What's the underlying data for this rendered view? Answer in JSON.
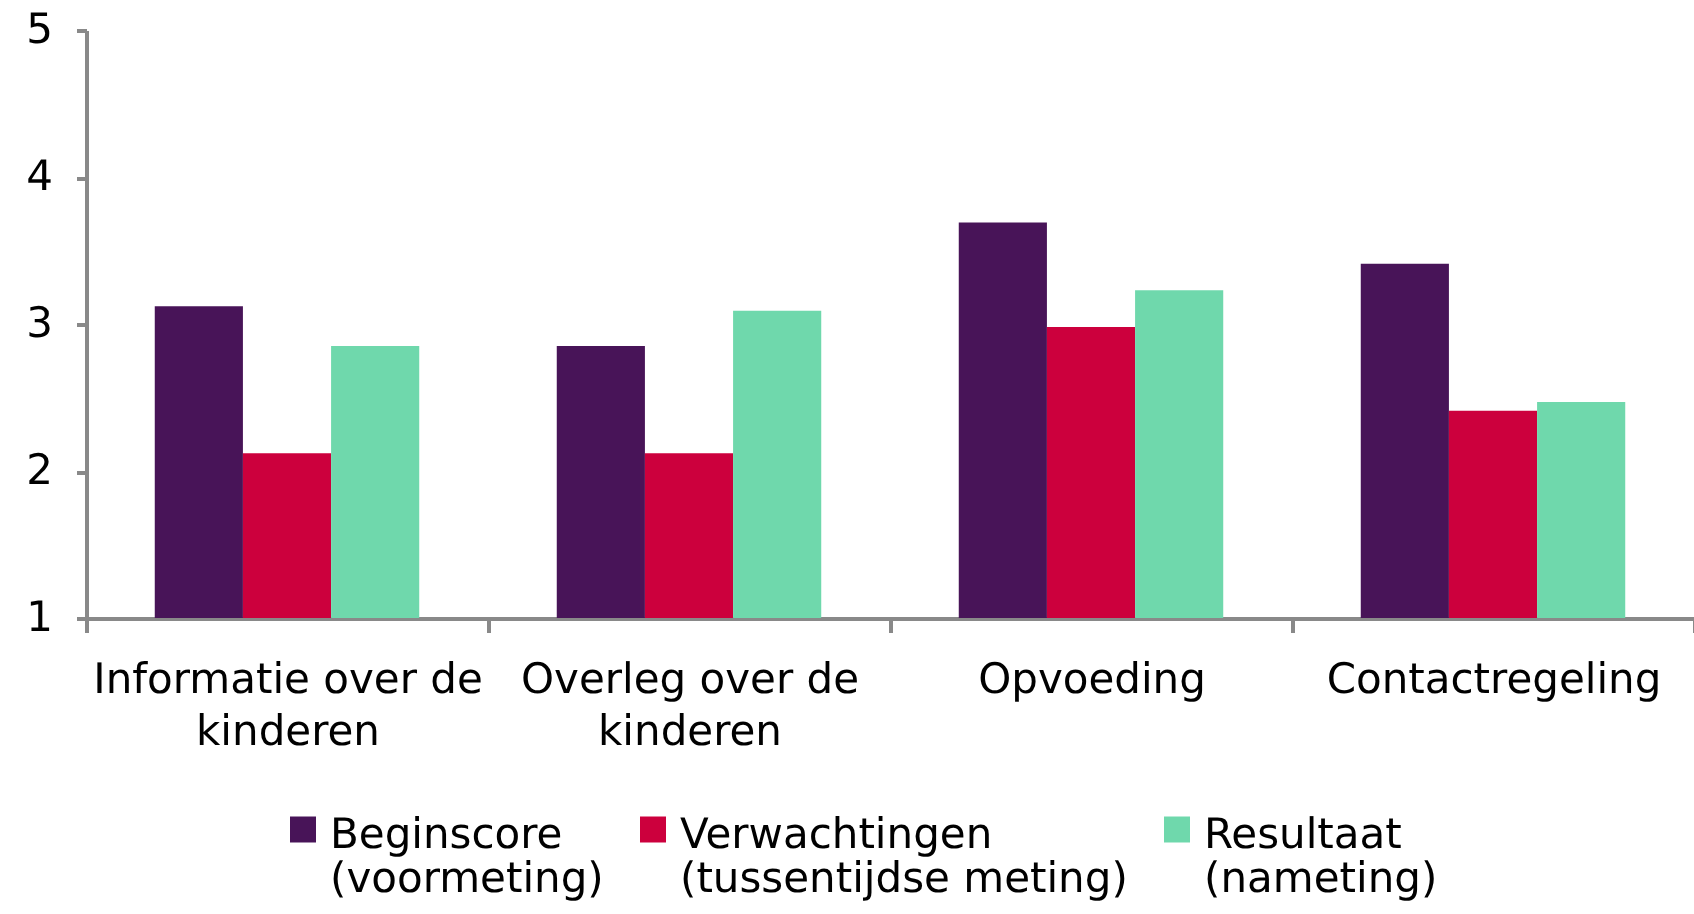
{
  "chart_data": {
    "type": "bar",
    "categories": [
      "Informatie over de kinderen",
      "Overleg over de kinderen",
      "Opvoeding",
      "Contactregeling"
    ],
    "series": [
      {
        "name": "Beginscore (voormeting)",
        "color": "#481458",
        "values": [
          3.12,
          2.85,
          3.69,
          3.41
        ]
      },
      {
        "name": "Verwachtingen (tussentijdse meting)",
        "color": "#cc003d",
        "values": [
          2.12,
          2.12,
          2.98,
          2.41
        ]
      },
      {
        "name": "Resultaat (nameting)",
        "color": "#6fd8ac",
        "values": [
          2.85,
          3.09,
          3.23,
          2.47
        ]
      }
    ],
    "ylim": [
      1,
      5
    ],
    "yticks": [
      1,
      2,
      3,
      4,
      5
    ],
    "grid": false,
    "legend": "bottom"
  }
}
